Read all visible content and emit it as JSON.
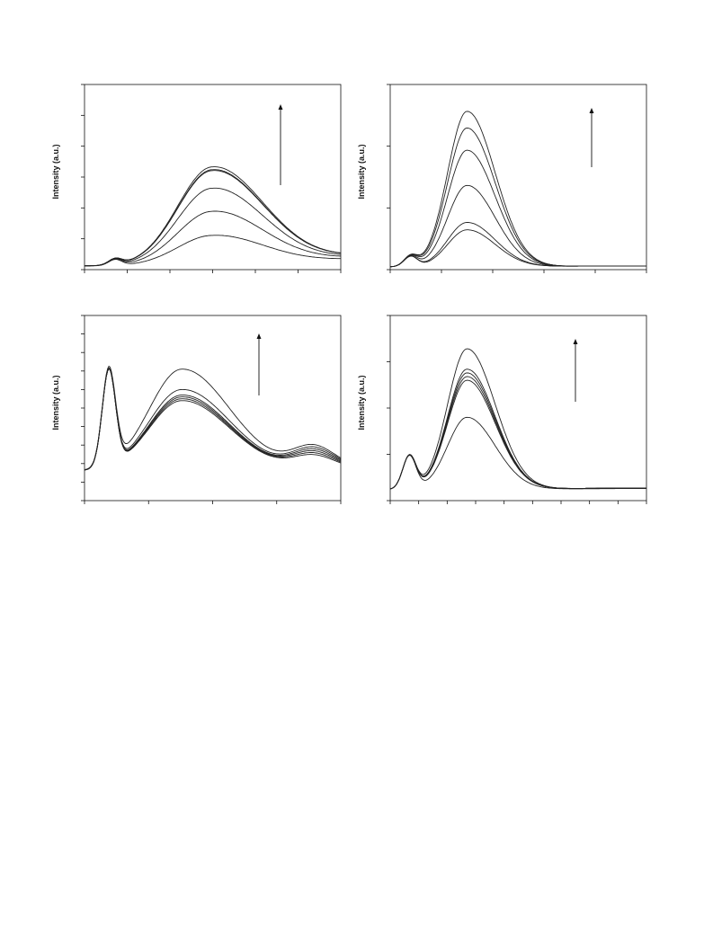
{
  "page": {
    "background": "#ffffff",
    "curve_color": "#222222",
    "axis_color": "#111111",
    "panels": [
      {
        "id": "a",
        "ylabel": "Intensity (a.u.)"
      },
      {
        "id": "b",
        "ylabel": "Intensity (a.u.)"
      },
      {
        "id": "c",
        "ylabel": "Intensity (a.u.)"
      },
      {
        "id": "d",
        "ylabel": "Intensity (a.u.)"
      }
    ]
  },
  "chart_data": [
    {
      "type": "line",
      "title": "",
      "xlabel": "",
      "ylabel": "Intensity (a.u.)",
      "xlim": [
        0,
        100
      ],
      "ylim": [
        0,
        100
      ],
      "grid": false,
      "annotation": "upward arrow",
      "series": [
        {
          "peak": 16.5,
          "shoulder": 3.2,
          "base": 2.0,
          "tail": 4.0
        },
        {
          "peak": 29.5,
          "shoulder": 3.2,
          "base": 2.0,
          "tail": 5.0
        },
        {
          "peak": 42.0,
          "shoulder": 3.2,
          "base": 2.0,
          "tail": 5.5
        },
        {
          "peak": 51.5,
          "shoulder": 3.2,
          "base": 2.0,
          "tail": 6.0
        },
        {
          "peak": 52.0,
          "shoulder": 3.2,
          "base": 2.0,
          "tail": 6.0
        },
        {
          "peak": 53.5,
          "shoulder": 3.2,
          "base": 2.0,
          "tail": 6.0
        }
      ],
      "peak_x": 50,
      "shoulder_x": 12
    },
    {
      "type": "line",
      "title": "",
      "xlabel": "",
      "ylabel": "Intensity (a.u.)",
      "xlim": [
        0,
        100
      ],
      "ylim": [
        0,
        100
      ],
      "grid": false,
      "annotation": "upward arrow",
      "series": [
        {
          "peak": 20.0,
          "shoulder": 5.5,
          "base": 1.5,
          "tail": 0.5
        },
        {
          "peak": 24.0,
          "shoulder": 5.5,
          "base": 1.5,
          "tail": 0.5
        },
        {
          "peak": 44.0,
          "shoulder": 5.5,
          "base": 1.5,
          "tail": 0.5
        },
        {
          "peak": 63.0,
          "shoulder": 5.5,
          "base": 1.5,
          "tail": 0.5
        },
        {
          "peak": 75.0,
          "shoulder": 5.5,
          "base": 1.5,
          "tail": 0.5
        },
        {
          "peak": 84.0,
          "shoulder": 5.5,
          "base": 1.5,
          "tail": 0.5
        }
      ],
      "peak_x": 30,
      "shoulder_x": 8
    },
    {
      "type": "line",
      "title": "",
      "xlabel": "",
      "ylabel": "Intensity (a.u.)",
      "xlim": [
        0,
        100
      ],
      "ylim": [
        0,
        100
      ],
      "grid": false,
      "annotation": "upward arrow",
      "series": [
        {
          "peak": 38.0,
          "shoulder": 52.0,
          "base": 16.0,
          "tail": 8.0
        },
        {
          "peak": 39.0,
          "shoulder": 52.0,
          "base": 16.0,
          "tail": 9.0
        },
        {
          "peak": 40.0,
          "shoulder": 52.0,
          "base": 16.0,
          "tail": 10.0
        },
        {
          "peak": 41.0,
          "shoulder": 52.0,
          "base": 16.0,
          "tail": 11.0
        },
        {
          "peak": 44.0,
          "shoulder": 52.0,
          "base": 16.0,
          "tail": 12.0
        },
        {
          "peak": 55.0,
          "shoulder": 52.0,
          "base": 16.0,
          "tail": 13.0
        }
      ],
      "peak_x": 38,
      "shoulder_x": 9.5
    },
    {
      "type": "line",
      "title": "",
      "xlabel": "",
      "ylabel": "Intensity (a.u.)",
      "xlim": [
        0,
        100
      ],
      "ylim": [
        0,
        100
      ],
      "grid": false,
      "annotation": "upward arrow",
      "series": [
        {
          "peak": 39.0,
          "shoulder": 18.0,
          "base": 6.0,
          "tail": 0.5
        },
        {
          "peak": 59.0,
          "shoulder": 18.0,
          "base": 6.0,
          "tail": 0.8
        },
        {
          "peak": 61.0,
          "shoulder": 18.0,
          "base": 6.0,
          "tail": 0.8
        },
        {
          "peak": 63.0,
          "shoulder": 18.0,
          "base": 6.0,
          "tail": 0.8
        },
        {
          "peak": 65.0,
          "shoulder": 18.0,
          "base": 6.0,
          "tail": 0.8
        },
        {
          "peak": 76.0,
          "shoulder": 18.0,
          "base": 6.0,
          "tail": 0.8
        }
      ],
      "peak_x": 30,
      "shoulder_x": 7.5
    }
  ]
}
